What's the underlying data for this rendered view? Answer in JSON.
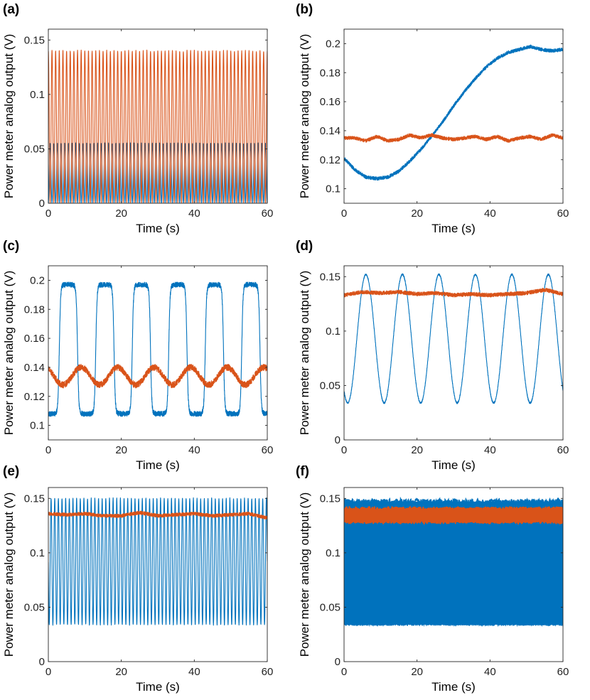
{
  "chart_data": [
    {
      "panel": "(a)",
      "type": "line",
      "xlabel": "Time (s)",
      "ylabel": "Power meter analog output (V)",
      "xlim": [
        0,
        60
      ],
      "ylim": [
        0,
        0.16
      ],
      "xticks": [
        "0",
        "20",
        "40",
        "60"
      ],
      "yticks": [
        {
          "v": 0,
          "t": "0"
        },
        {
          "v": 0.05,
          "t": "0.05"
        },
        {
          "v": 0.1,
          "t": "0.1"
        },
        {
          "v": 0.15,
          "t": "0.15"
        }
      ],
      "series": [
        {
          "color": "#0072BD",
          "form": "sine",
          "min": 0.0,
          "max": 0.055,
          "period_s": 1.0,
          "phase_s": 0.0,
          "noise": 0.0005
        },
        {
          "color": "#D95319",
          "form": "sine",
          "min": 0.0,
          "max": 0.14,
          "period_s": 1.0,
          "phase_s": 0.5,
          "noise": 0.0008
        }
      ]
    },
    {
      "panel": "(b)",
      "type": "line",
      "xlabel": "Time (s)",
      "ylabel": "Power meter analog output (V)",
      "xlim": [
        0,
        60
      ],
      "ylim": [
        0.09,
        0.21
      ],
      "xticks": [
        "0",
        "20",
        "40",
        "60"
      ],
      "yticks": [
        {
          "v": 0.1,
          "t": "0.1"
        },
        {
          "v": 0.12,
          "t": "0.12"
        },
        {
          "v": 0.14,
          "t": "0.14"
        },
        {
          "v": 0.16,
          "t": "0.16"
        },
        {
          "v": 0.18,
          "t": "0.18"
        },
        {
          "v": 0.2,
          "t": "0.2"
        }
      ],
      "series": [
        {
          "color": "#0072BD",
          "form": "points",
          "noise": 0.0012,
          "x": [
            0,
            3,
            6,
            9,
            12,
            15,
            18,
            21,
            24,
            27,
            30,
            33,
            36,
            39,
            42,
            45,
            48,
            51,
            54,
            57,
            60
          ],
          "y": [
            0.121,
            0.113,
            0.108,
            0.107,
            0.108,
            0.112,
            0.119,
            0.127,
            0.136,
            0.146,
            0.157,
            0.167,
            0.176,
            0.184,
            0.19,
            0.194,
            0.196,
            0.198,
            0.196,
            0.195,
            0.196
          ]
        },
        {
          "color": "#D95319",
          "form": "points",
          "noise": 0.0012,
          "x": [
            0,
            3,
            6,
            9,
            12,
            15,
            18,
            21,
            24,
            27,
            30,
            33,
            36,
            39,
            42,
            45,
            48,
            51,
            54,
            57,
            60
          ],
          "y": [
            0.135,
            0.135,
            0.133,
            0.136,
            0.133,
            0.134,
            0.137,
            0.135,
            0.137,
            0.135,
            0.134,
            0.135,
            0.136,
            0.134,
            0.136,
            0.133,
            0.135,
            0.136,
            0.134,
            0.137,
            0.135
          ]
        }
      ]
    },
    {
      "panel": "(c)",
      "type": "line",
      "xlabel": "Time (s)",
      "ylabel": "Power meter analog output (V)",
      "xlim": [
        0,
        60
      ],
      "ylim": [
        0.09,
        0.21
      ],
      "xticks": [
        "0",
        "20",
        "40",
        "60"
      ],
      "yticks": [
        {
          "v": 0.1,
          "t": "0.1"
        },
        {
          "v": 0.12,
          "t": "0.12"
        },
        {
          "v": 0.14,
          "t": "0.14"
        },
        {
          "v": 0.16,
          "t": "0.16"
        },
        {
          "v": 0.18,
          "t": "0.18"
        },
        {
          "v": 0.2,
          "t": "0.2"
        }
      ],
      "series": [
        {
          "color": "#0072BD",
          "form": "square",
          "min": 0.108,
          "max": 0.197,
          "period_s": 10.0,
          "phase_s": 0.5,
          "sharp": 4.5,
          "noise": 0.0018
        },
        {
          "color": "#D95319",
          "form": "sine",
          "min": 0.128,
          "max": 0.14,
          "period_s": 10.0,
          "phase_s": 4.0,
          "noise": 0.0022
        }
      ]
    },
    {
      "panel": "(d)",
      "type": "line",
      "xlabel": "Time (s)",
      "ylabel": "Power meter analog output (V)",
      "xlim": [
        0,
        60
      ],
      "ylim": [
        0,
        0.16
      ],
      "xticks": [
        "0",
        "20",
        "40",
        "60"
      ],
      "yticks": [
        {
          "v": 0,
          "t": "0"
        },
        {
          "v": 0.05,
          "t": "0.05"
        },
        {
          "v": 0.1,
          "t": "0.1"
        },
        {
          "v": 0.15,
          "t": "0.15"
        }
      ],
      "series": [
        {
          "color": "#0072BD",
          "form": "sine",
          "min": 0.034,
          "max": 0.152,
          "period_s": 10.0,
          "phase_s": 1.0,
          "noise": 0.0008
        },
        {
          "color": "#D95319",
          "form": "points",
          "noise": 0.0018,
          "x": [
            0,
            5,
            10,
            15,
            20,
            25,
            30,
            35,
            40,
            45,
            50,
            55,
            60
          ],
          "y": [
            0.133,
            0.136,
            0.135,
            0.136,
            0.134,
            0.135,
            0.133,
            0.134,
            0.133,
            0.134,
            0.135,
            0.138,
            0.134
          ]
        }
      ]
    },
    {
      "panel": "(e)",
      "type": "line",
      "xlabel": "Time (s)",
      "ylabel": "Power meter analog output (V)",
      "xlim": [
        0,
        60
      ],
      "ylim": [
        0,
        0.16
      ],
      "xticks": [
        "0",
        "20",
        "40",
        "60"
      ],
      "yticks": [
        {
          "v": 0,
          "t": "0"
        },
        {
          "v": 0.05,
          "t": "0.05"
        },
        {
          "v": 0.1,
          "t": "0.1"
        },
        {
          "v": 0.15,
          "t": "0.15"
        }
      ],
      "series": [
        {
          "color": "#0072BD",
          "form": "sine",
          "min": 0.034,
          "max": 0.15,
          "period_s": 1.0,
          "phase_s": 0.25,
          "noise": 0.0006
        },
        {
          "color": "#D95319",
          "form": "points",
          "noise": 0.0016,
          "x": [
            0,
            5,
            10,
            15,
            20,
            25,
            30,
            35,
            40,
            45,
            50,
            55,
            60
          ],
          "y": [
            0.136,
            0.135,
            0.136,
            0.134,
            0.134,
            0.137,
            0.134,
            0.135,
            0.136,
            0.134,
            0.135,
            0.136,
            0.132
          ]
        }
      ]
    },
    {
      "panel": "(f)",
      "type": "line",
      "xlabel": "Time (s)",
      "ylabel": "Power meter analog output (V)",
      "xlim": [
        0,
        60
      ],
      "ylim": [
        0,
        0.16
      ],
      "xticks": [
        "0",
        "20",
        "40",
        "60"
      ],
      "yticks": [
        {
          "v": 0,
          "t": "0"
        },
        {
          "v": 0.05,
          "t": "0.05"
        },
        {
          "v": 0.1,
          "t": "0.1"
        },
        {
          "v": 0.15,
          "t": "0.15"
        }
      ],
      "series": [
        {
          "color": "#0072BD",
          "form": "fill",
          "min": 0.034,
          "max": 0.147,
          "noise": 0.0015
        },
        {
          "color": "#D95319",
          "form": "band",
          "min": 0.129,
          "max": 0.14,
          "noise": 0.0012
        }
      ]
    }
  ]
}
